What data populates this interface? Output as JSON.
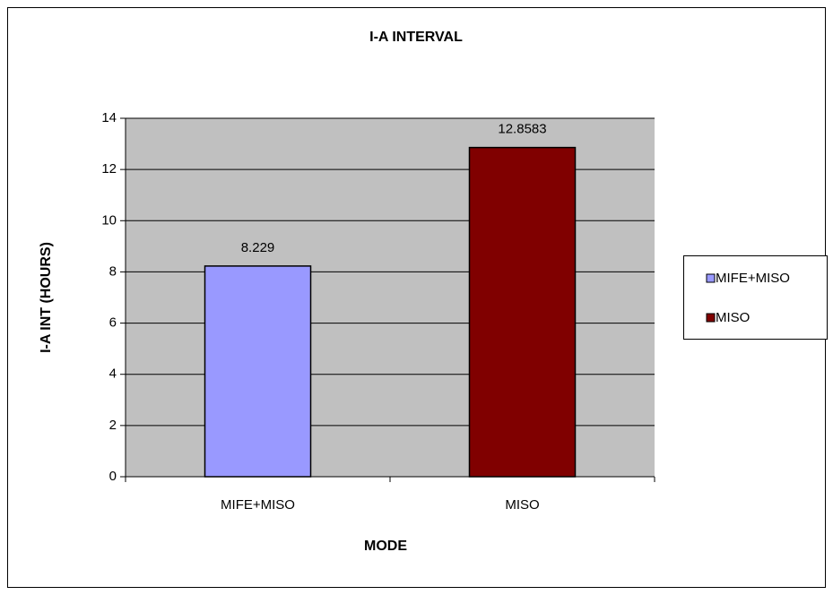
{
  "chart_data": {
    "type": "bar",
    "title": "I-A INTERVAL",
    "x_label": "MODE",
    "y_label": "I-A INT (HOURS)",
    "categories": [
      "MIFE+MISO",
      "MISO"
    ],
    "values": [
      8.229,
      12.8583
    ],
    "colors": [
      "#9999ff",
      "#800000"
    ],
    "ylim": [
      0,
      14
    ],
    "yticks": [
      0,
      2,
      4,
      6,
      8,
      10,
      12,
      14
    ],
    "grid": true,
    "legend": "right",
    "data_labels": true
  }
}
